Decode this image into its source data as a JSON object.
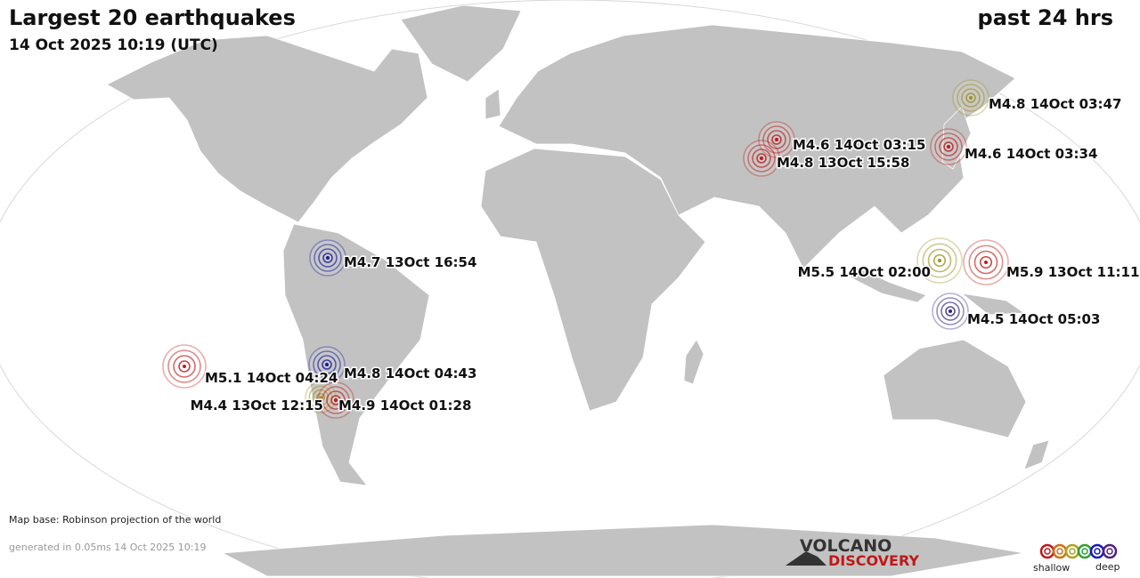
{
  "header": {
    "title": "Largest 20 earthquakes",
    "subtitle": "14 Oct 2025 10:19 (UTC)",
    "period": "past 24 hrs"
  },
  "quakes": [
    {
      "label": "M4.8 14Oct 03:47",
      "color": "#a09020"
    },
    {
      "label": "M4.6 14Oct 03:15",
      "color": "#c01818"
    },
    {
      "label": "M4.8 13Oct 15:58",
      "color": "#c01818"
    },
    {
      "label": "M4.6 14Oct 03:34",
      "color": "#c01818"
    },
    {
      "label": "M4.7 13Oct 16:54",
      "color": "#1818a0"
    },
    {
      "label": "M5.5 14Oct 02:00",
      "color": "#a09020"
    },
    {
      "label": "M5.9 13Oct 11:11",
      "color": "#c01818"
    },
    {
      "label": "M4.5 14Oct 05:03",
      "color": "#302080"
    },
    {
      "label": "M5.1 14Oct 04:24",
      "color": "#c01818"
    },
    {
      "label": "M4.8 14Oct 04:43",
      "color": "#1818a0"
    },
    {
      "label": "M4.4 13Oct 12:15",
      "color": "#a09020"
    },
    {
      "label": "M4.9 14Oct 01:28",
      "color": "#c01818"
    }
  ],
  "footer": {
    "map_base": "Map base: Robinson projection of the world",
    "generated": "generated in 0.05ms 14 Oct 2025 10:19"
  },
  "logo": {
    "line1": "VOLCANO",
    "line2": "DISCOVERY"
  },
  "legend": {
    "shallow": "shallow",
    "deep": "deep"
  }
}
